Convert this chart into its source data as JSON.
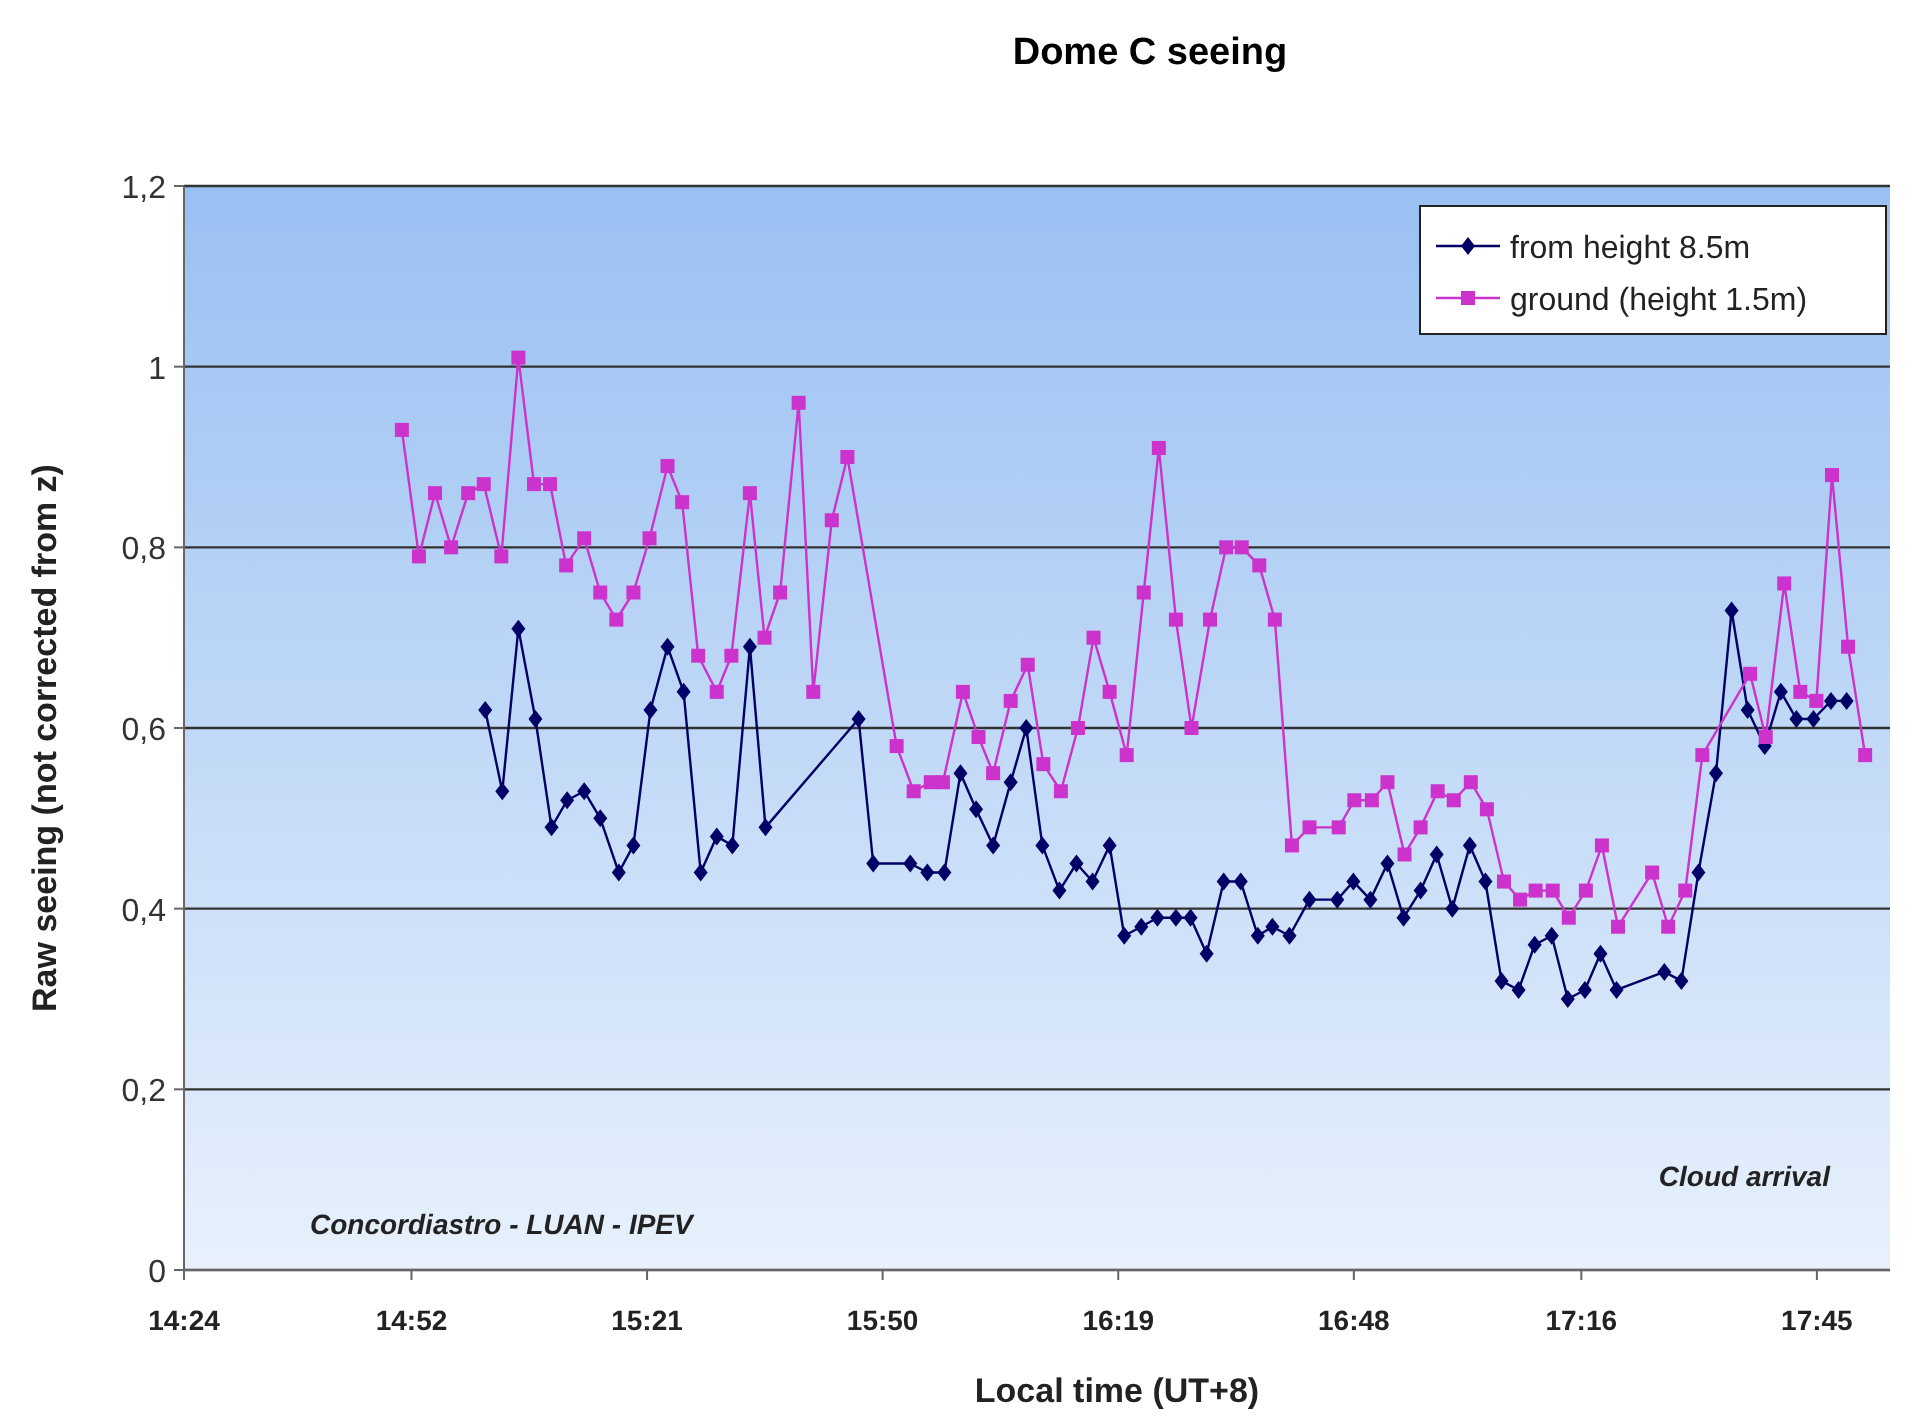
{
  "chart_data": {
    "type": "line",
    "title": "Dome C seeing",
    "xlabel": "Local time (UT+8)",
    "ylabel": "Raw seeing (not corrected from z)",
    "xlim": [
      14.4,
      17.9
    ],
    "xticks": [
      {
        "value": 14.4,
        "label": "14:24"
      },
      {
        "value": 14.8667,
        "label": "14:52"
      },
      {
        "value": 15.35,
        "label": "15:21"
      },
      {
        "value": 15.8333,
        "label": "15:50"
      },
      {
        "value": 16.3167,
        "label": "16:19"
      },
      {
        "value": 16.8,
        "label": "16:48"
      },
      {
        "value": 17.2667,
        "label": "17:16"
      },
      {
        "value": 17.75,
        "label": "17:45"
      }
    ],
    "ylim": [
      0,
      1.2
    ],
    "yticks": [
      {
        "value": 0,
        "label": "0"
      },
      {
        "value": 0.2,
        "label": "0,2"
      },
      {
        "value": 0.4,
        "label": "0,4"
      },
      {
        "value": 0.6,
        "label": "0,6"
      },
      {
        "value": 0.8,
        "label": "0,8"
      },
      {
        "value": 1,
        "label": "1"
      },
      {
        "value": 1.2,
        "label": "1,2"
      }
    ],
    "grid": "y",
    "legend": "top right",
    "annotations": [
      "Concordiastro - LUAN - IPEV",
      "Cloud arrival"
    ],
    "series": [
      {
        "name": "from height 8.5m",
        "color": "#000066",
        "marker": "diamond",
        "x": [
          15.018,
          15.053,
          15.086,
          15.121,
          15.154,
          15.186,
          15.221,
          15.254,
          15.292,
          15.322,
          15.357,
          15.392,
          15.425,
          15.46,
          15.493,
          15.525,
          15.561,
          15.593,
          15.784,
          15.814,
          15.89,
          15.925,
          15.96,
          15.993,
          16.025,
          16.06,
          16.096,
          16.128,
          16.161,
          16.196,
          16.231,
          16.264,
          16.299,
          16.329,
          16.364,
          16.397,
          16.435,
          16.465,
          16.498,
          16.533,
          16.568,
          16.603,
          16.633,
          16.668,
          16.709,
          16.766,
          16.799,
          16.834,
          16.869,
          16.902,
          16.937,
          16.97,
          17.002,
          17.038,
          17.07,
          17.103,
          17.138,
          17.171,
          17.206,
          17.239,
          17.274,
          17.306,
          17.339,
          17.437,
          17.472,
          17.507,
          17.543,
          17.575,
          17.608,
          17.643,
          17.676,
          17.708,
          17.743,
          17.779,
          17.811
        ],
        "values": [
          0.62,
          0.53,
          0.71,
          0.61,
          0.49,
          0.52,
          0.53,
          0.5,
          0.44,
          0.47,
          0.62,
          0.69,
          0.64,
          0.44,
          0.48,
          0.47,
          0.69,
          0.49,
          0.61,
          0.45,
          0.45,
          0.44,
          0.44,
          0.55,
          0.51,
          0.47,
          0.54,
          0.6,
          0.47,
          0.42,
          0.45,
          0.43,
          0.47,
          0.37,
          0.38,
          0.39,
          0.39,
          0.39,
          0.35,
          0.43,
          0.43,
          0.37,
          0.38,
          0.37,
          0.41,
          0.41,
          0.43,
          0.41,
          0.45,
          0.39,
          0.42,
          0.46,
          0.4,
          0.47,
          0.43,
          0.32,
          0.31,
          0.36,
          0.37,
          0.3,
          0.31,
          0.35,
          0.31,
          0.33,
          0.32,
          0.44,
          0.55,
          0.73,
          0.62,
          0.58,
          0.64,
          0.61,
          0.61,
          0.63,
          0.63
        ]
      },
      {
        "name": "ground (height 1.5m)",
        "color": "#cc33cc",
        "marker": "square",
        "x": [
          14.847,
          14.882,
          14.915,
          14.948,
          14.983,
          15.015,
          15.051,
          15.086,
          15.118,
          15.151,
          15.184,
          15.221,
          15.254,
          15.287,
          15.322,
          15.355,
          15.392,
          15.422,
          15.455,
          15.493,
          15.523,
          15.561,
          15.591,
          15.623,
          15.661,
          15.691,
          15.729,
          15.761,
          15.862,
          15.897,
          15.932,
          15.957,
          15.998,
          16.03,
          16.06,
          16.096,
          16.131,
          16.163,
          16.199,
          16.234,
          16.266,
          16.299,
          16.334,
          16.369,
          16.4,
          16.435,
          16.467,
          16.505,
          16.538,
          16.57,
          16.606,
          16.638,
          16.673,
          16.709,
          16.769,
          16.801,
          16.837,
          16.869,
          16.904,
          16.937,
          16.972,
          17.005,
          17.04,
          17.073,
          17.108,
          17.141,
          17.173,
          17.208,
          17.241,
          17.276,
          17.309,
          17.342,
          17.412,
          17.445,
          17.48,
          17.515,
          17.613,
          17.645,
          17.683,
          17.716,
          17.749,
          17.781,
          17.814,
          17.849
        ],
        "values": [
          0.93,
          0.79,
          0.86,
          0.8,
          0.86,
          0.87,
          0.79,
          1.01,
          0.87,
          0.87,
          0.78,
          0.81,
          0.75,
          0.72,
          0.75,
          0.81,
          0.89,
          0.85,
          0.68,
          0.64,
          0.68,
          0.86,
          0.7,
          0.75,
          0.96,
          0.64,
          0.83,
          0.9,
          0.58,
          0.53,
          0.54,
          0.54,
          0.64,
          0.59,
          0.55,
          0.63,
          0.67,
          0.56,
          0.53,
          0.6,
          0.7,
          0.64,
          0.57,
          0.75,
          0.91,
          0.72,
          0.6,
          0.72,
          0.8,
          0.8,
          0.78,
          0.72,
          0.47,
          0.49,
          0.49,
          0.52,
          0.52,
          0.54,
          0.46,
          0.49,
          0.53,
          0.52,
          0.54,
          0.51,
          0.43,
          0.41,
          0.42,
          0.42,
          0.39,
          0.42,
          0.47,
          0.38,
          0.44,
          0.38,
          0.42,
          0.57,
          0.66,
          0.59,
          0.76,
          0.64,
          0.63,
          0.88,
          0.69,
          0.57
        ]
      }
    ]
  }
}
